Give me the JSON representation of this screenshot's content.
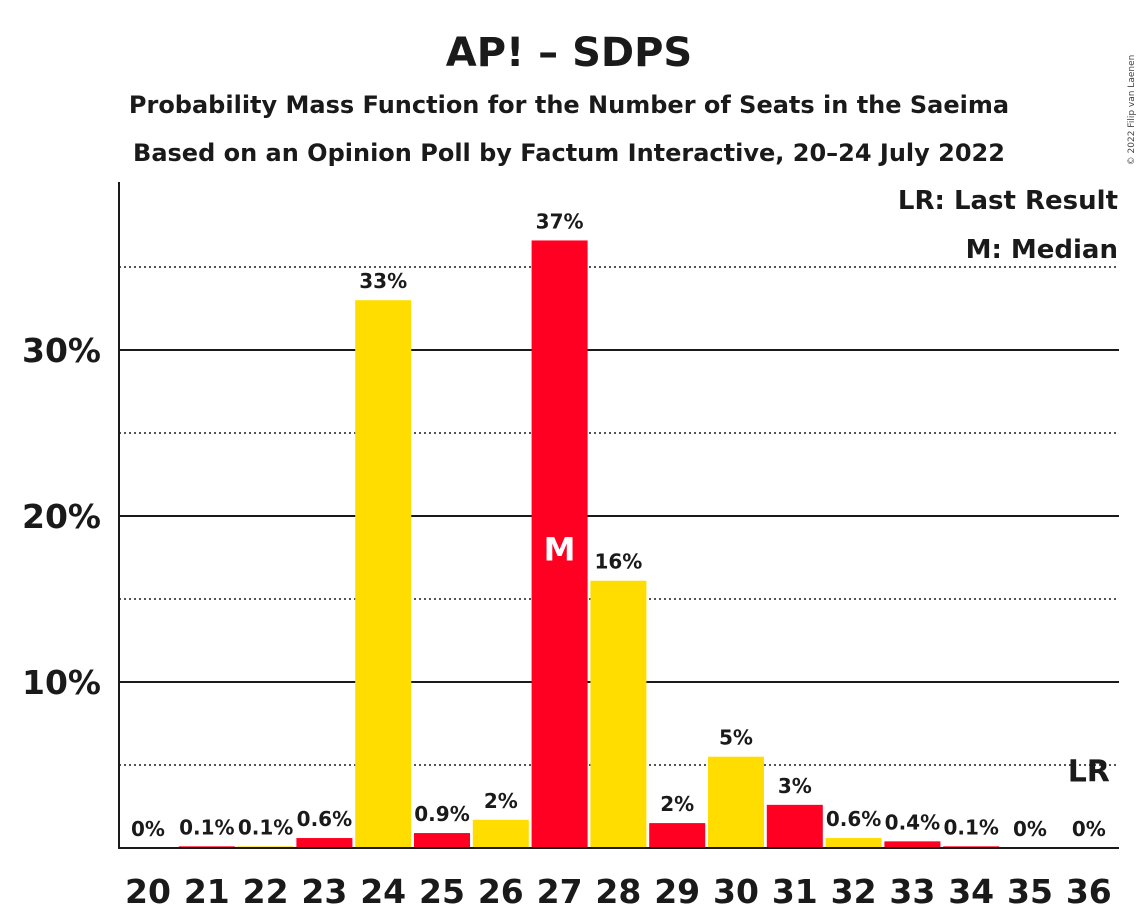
{
  "chart_data": {
    "type": "bar",
    "title": "AP! – SDPS",
    "subtitle_1": "Probability Mass Function for the Number of Seats in the Saeima",
    "subtitle_2": "Based on an Opinion Poll by Factum Interactive, 20–24 July 2022",
    "copyright": "© 2022 Filip van Laenen",
    "categories": [
      "20",
      "21",
      "22",
      "23",
      "24",
      "25",
      "26",
      "27",
      "28",
      "29",
      "30",
      "31",
      "32",
      "33",
      "34",
      "35",
      "36"
    ],
    "values": [
      0,
      0.1,
      0.1,
      0.6,
      33,
      0.9,
      1.7,
      36.6,
      16.1,
      1.5,
      5.5,
      2.6,
      0.6,
      0.4,
      0.1,
      0,
      0
    ],
    "labels": [
      "0%",
      "0.1%",
      "0.1%",
      "0.6%",
      "33%",
      "0.9%",
      "2%",
      "37%",
      "16%",
      "2%",
      "5%",
      "3%",
      "0.6%",
      "0.4%",
      "0.1%",
      "0%",
      "0%"
    ],
    "colors": [
      "#FF0022",
      "#FF0022",
      "#FFDD00",
      "#FF0022",
      "#FFDD00",
      "#FF0022",
      "#FFDD00",
      "#FF0022",
      "#FFDD00",
      "#FF0022",
      "#FFDD00",
      "#FF0022",
      "#FFDD00",
      "#FF0022",
      "#FF0022",
      "#FF0022",
      "#FF0022"
    ],
    "ylim": [
      0,
      40
    ],
    "yticks": [
      {
        "value": 10,
        "label": "10%"
      },
      {
        "value": 20,
        "label": "20%"
      },
      {
        "value": 30,
        "label": "30%"
      }
    ],
    "dotted_gridlines": [
      5,
      15,
      25,
      35
    ],
    "median_seat": "27",
    "median_marker": "M",
    "last_result_seat": "36",
    "last_result_marker": "LR",
    "legend": {
      "last_result": "LR: Last Result",
      "median": "M: Median",
      "placement": "top-right"
    }
  }
}
